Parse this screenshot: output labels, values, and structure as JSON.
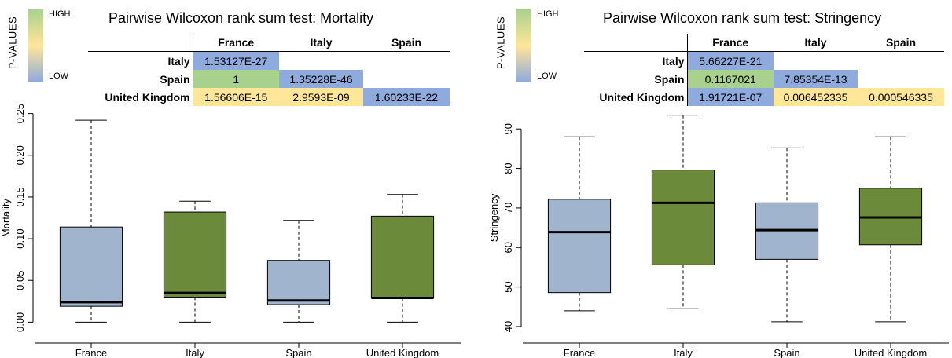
{
  "panels": [
    {
      "id": "mortality",
      "legend": {
        "axis_label": "P-VALUES",
        "high": "HIGH",
        "low": "LOW",
        "colors": {
          "high": "#a9d18e",
          "mid": "#ffe699",
          "low": "#8faadc"
        }
      },
      "title": "Pairwise Wilcoxon rank sum test: Mortality",
      "table": {
        "columns": [
          "France",
          "Italy",
          "Spain"
        ],
        "rows": [
          {
            "label": "Italy",
            "cells": [
              {
                "text": "1.53127E-27",
                "level": "low"
              },
              {
                "text": "",
                "level": "none"
              },
              {
                "text": "",
                "level": "none"
              }
            ]
          },
          {
            "label": "Spain",
            "cells": [
              {
                "text": "1",
                "level": "high"
              },
              {
                "text": "1.35228E-46",
                "level": "low"
              },
              {
                "text": "",
                "level": "none"
              }
            ]
          },
          {
            "label": "United Kingdom",
            "cells": [
              {
                "text": "1.56606E-15",
                "level": "mid"
              },
              {
                "text": "2.9593E-09",
                "level": "mid"
              },
              {
                "text": "1.60233E-22",
                "level": "low"
              }
            ]
          }
        ]
      }
    },
    {
      "id": "stringency",
      "legend": {
        "axis_label": "P-VALUES",
        "high": "HIGH",
        "low": "LOW",
        "colors": {
          "high": "#a9d18e",
          "mid": "#ffe699",
          "low": "#8faadc"
        }
      },
      "title": "Pairwise Wilcoxon rank sum test: Stringency",
      "table": {
        "columns": [
          "France",
          "Italy",
          "Spain"
        ],
        "rows": [
          {
            "label": "Italy",
            "cells": [
              {
                "text": "5.66227E-21",
                "level": "low"
              },
              {
                "text": "",
                "level": "none"
              },
              {
                "text": "",
                "level": "none"
              }
            ]
          },
          {
            "label": "Spain",
            "cells": [
              {
                "text": "0.1167021",
                "level": "high"
              },
              {
                "text": "7.85354E-13",
                "level": "low"
              },
              {
                "text": "",
                "level": "none"
              }
            ]
          },
          {
            "label": "United Kingdom",
            "cells": [
              {
                "text": "1.91721E-07",
                "level": "low"
              },
              {
                "text": "0.006452335",
                "level": "mid"
              },
              {
                "text": "0.000546335",
                "level": "mid"
              }
            ]
          }
        ]
      }
    }
  ],
  "chart_data": [
    {
      "type": "boxplot",
      "title": "",
      "xlabel": "",
      "ylabel": "Mortality",
      "ylim": [
        -0.01,
        0.26
      ],
      "yticks": [
        "0.00",
        "0.05",
        "0.10",
        "0.15",
        "0.20",
        "0.25"
      ],
      "ytick_values": [
        0,
        0.05,
        0.1,
        0.15,
        0.2,
        0.25
      ],
      "categories": [
        "France",
        "Italy",
        "Spain",
        "United Kingdom"
      ],
      "colors": [
        "#a0b4cd",
        "#6b8a3a",
        "#a0b4cd",
        "#6b8a3a"
      ],
      "boxes": [
        {
          "min": 0.0,
          "q1": 0.019,
          "median": 0.024,
          "q3": 0.114,
          "max": 0.242
        },
        {
          "min": 0.0,
          "q1": 0.03,
          "median": 0.035,
          "q3": 0.132,
          "max": 0.145
        },
        {
          "min": 0.0,
          "q1": 0.021,
          "median": 0.026,
          "q3": 0.074,
          "max": 0.122
        },
        {
          "min": 0.0,
          "q1": 0.029,
          "median": 0.029,
          "q3": 0.127,
          "max": 0.153
        }
      ]
    },
    {
      "type": "boxplot",
      "title": "",
      "xlabel": "",
      "ylabel": "Stringency",
      "ylim": [
        39,
        96
      ],
      "yticks": [
        "40",
        "50",
        "60",
        "70",
        "80",
        "90"
      ],
      "ytick_values": [
        40,
        50,
        60,
        70,
        80,
        90
      ],
      "categories": [
        "France",
        "Italy",
        "Spain",
        "United Kingdom"
      ],
      "colors": [
        "#a0b4cd",
        "#6b8a3a",
        "#a0b4cd",
        "#6b8a3a"
      ],
      "boxes": [
        {
          "min": 44.0,
          "q1": 48.6,
          "median": 63.9,
          "q3": 72.2,
          "max": 88.0
        },
        {
          "min": 44.5,
          "q1": 55.6,
          "median": 71.3,
          "q3": 79.6,
          "max": 93.5
        },
        {
          "min": 41.2,
          "q1": 57.0,
          "median": 64.4,
          "q3": 71.3,
          "max": 85.2
        },
        {
          "min": 41.2,
          "q1": 60.7,
          "median": 67.6,
          "q3": 75.0,
          "max": 88.0
        }
      ]
    }
  ]
}
